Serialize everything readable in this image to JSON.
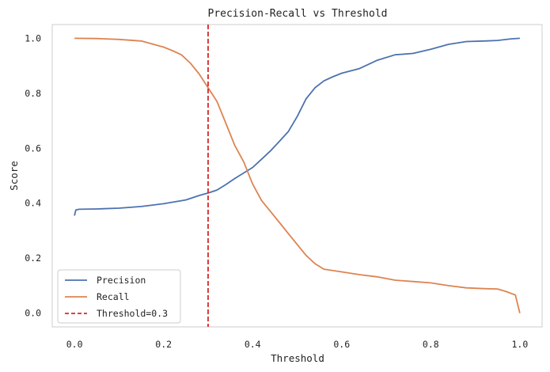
{
  "chart_data": {
    "type": "line",
    "title": "Precision-Recall vs Threshold",
    "xlabel": "Threshold",
    "ylabel": "Score",
    "xlim": [
      -0.05,
      1.05
    ],
    "ylim": [
      -0.05,
      1.05
    ],
    "xticks": [
      0.0,
      0.2,
      0.4,
      0.6,
      0.8,
      1.0
    ],
    "xtick_labels": [
      "0.0",
      "0.2",
      "0.4",
      "0.6",
      "0.8",
      "1.0"
    ],
    "yticks": [
      0.0,
      0.2,
      0.4,
      0.6,
      0.8,
      1.0
    ],
    "ytick_labels": [
      "0.0",
      "0.2",
      "0.4",
      "0.6",
      "0.8",
      "1.0"
    ],
    "grid": false,
    "legend_position": "lower-left",
    "series": [
      {
        "name": "Precision",
        "color": "#4c72b0",
        "style": "solid",
        "x": [
          0.0,
          0.003,
          0.01,
          0.05,
          0.1,
          0.15,
          0.2,
          0.25,
          0.28,
          0.3,
          0.32,
          0.34,
          0.36,
          0.38,
          0.4,
          0.42,
          0.44,
          0.46,
          0.48,
          0.5,
          0.52,
          0.54,
          0.56,
          0.58,
          0.6,
          0.64,
          0.68,
          0.72,
          0.76,
          0.8,
          0.84,
          0.88,
          0.92,
          0.95,
          0.98,
          1.0
        ],
        "y": [
          0.355,
          0.375,
          0.378,
          0.379,
          0.382,
          0.388,
          0.398,
          0.412,
          0.428,
          0.437,
          0.448,
          0.468,
          0.49,
          0.51,
          0.53,
          0.56,
          0.59,
          0.625,
          0.66,
          0.715,
          0.78,
          0.82,
          0.845,
          0.86,
          0.873,
          0.89,
          0.92,
          0.94,
          0.945,
          0.96,
          0.978,
          0.988,
          0.99,
          0.992,
          0.998,
          1.0
        ]
      },
      {
        "name": "Recall",
        "color": "#dd8452",
        "style": "solid",
        "x": [
          0.0,
          0.05,
          0.1,
          0.15,
          0.18,
          0.2,
          0.22,
          0.24,
          0.26,
          0.28,
          0.3,
          0.32,
          0.34,
          0.36,
          0.38,
          0.4,
          0.42,
          0.44,
          0.46,
          0.48,
          0.5,
          0.52,
          0.54,
          0.56,
          0.6,
          0.64,
          0.68,
          0.72,
          0.76,
          0.8,
          0.84,
          0.88,
          0.92,
          0.95,
          0.97,
          0.99,
          1.0
        ],
        "y": [
          1.0,
          0.999,
          0.996,
          0.99,
          0.977,
          0.968,
          0.955,
          0.94,
          0.91,
          0.87,
          0.82,
          0.77,
          0.69,
          0.61,
          0.55,
          0.47,
          0.41,
          0.37,
          0.33,
          0.29,
          0.25,
          0.21,
          0.18,
          0.16,
          0.15,
          0.14,
          0.132,
          0.12,
          0.115,
          0.11,
          0.1,
          0.092,
          0.089,
          0.088,
          0.078,
          0.066,
          0.0
        ]
      }
    ],
    "vlines": [
      {
        "name": "Threshold=0.3",
        "x": 0.3,
        "color": "#d62728",
        "style": "dashed"
      }
    ]
  }
}
